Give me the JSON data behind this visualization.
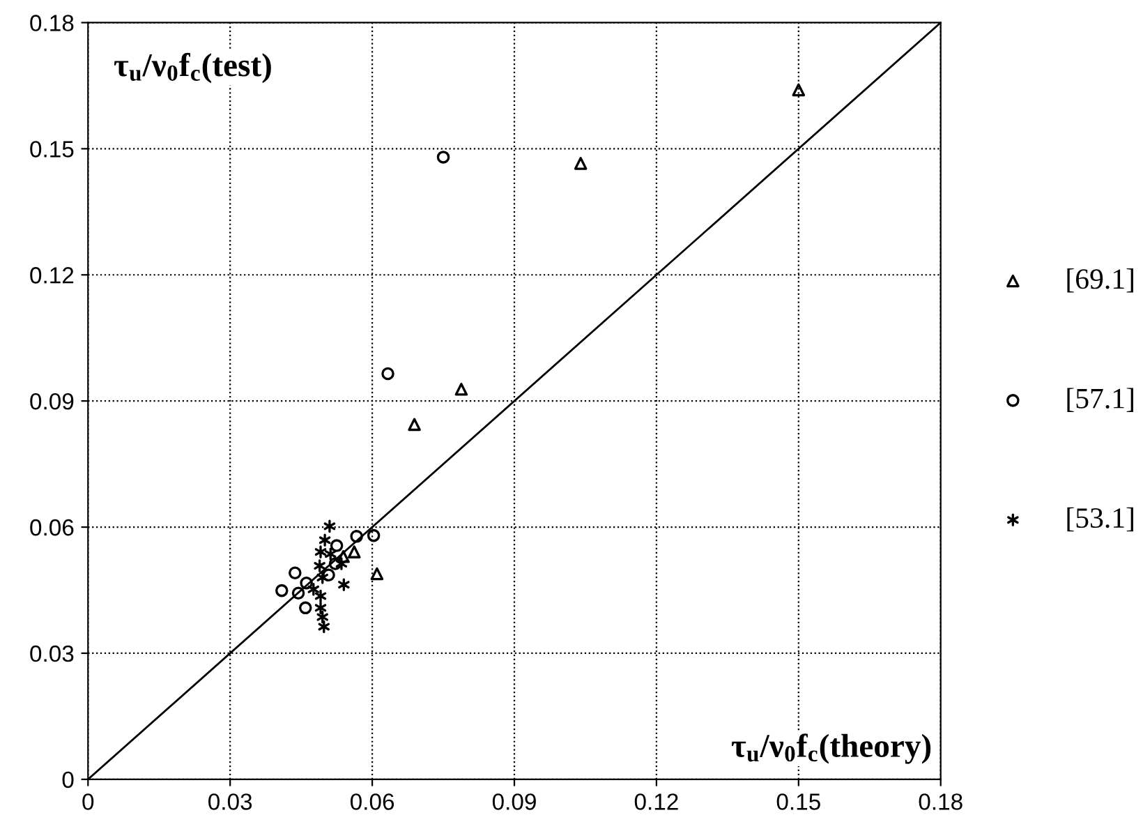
{
  "chart_data": {
    "type": "scatter",
    "xlabel": "τ$_{u}$/ν$_{0}$f$_{c}$(theory)",
    "ylabel": "τ$_{u}$/ν$_{0}$f$_{c}$(test)",
    "xlim": [
      0,
      0.18
    ],
    "ylim": [
      0,
      0.18
    ],
    "xticks": [
      0,
      0.03,
      0.06,
      0.09,
      0.12,
      0.15,
      0.18
    ],
    "yticks": [
      0,
      0.03,
      0.06,
      0.09,
      0.12,
      0.15,
      0.18
    ],
    "grid": true,
    "legend": "right",
    "series": [
      {
        "name": "[69.1]",
        "color": "#000000",
        "marker": "triangle",
        "x": [
          0.15,
          0.104,
          0.0788,
          0.0689,
          0.061,
          0.0562,
          0.0539
        ],
        "values": [
          0.164,
          0.1465,
          0.0928,
          0.0844,
          0.0489,
          0.0541,
          0.053
        ]
      },
      {
        "name": "[57.1]",
        "color": "#000000",
        "marker": "circle",
        "x": [
          0.075,
          0.0633,
          0.0603,
          0.0567,
          0.0525,
          0.0437,
          0.0409,
          0.0444,
          0.0459,
          0.0461,
          0.0508,
          0.0522
        ],
        "values": [
          0.148,
          0.0965,
          0.058,
          0.0578,
          0.0556,
          0.0491,
          0.0449,
          0.0443,
          0.0408,
          0.0467,
          0.0486,
          0.0513
        ]
      },
      {
        "name": "[53.1]",
        "color": "#000000",
        "marker": "cross",
        "x": [
          0.051,
          0.05,
          0.0491,
          0.0512,
          0.0489,
          0.0535,
          0.054,
          0.0495,
          0.0491,
          0.0491,
          0.0495,
          0.0498,
          0.0476
        ],
        "values": [
          0.0602,
          0.0569,
          0.0541,
          0.0536,
          0.0508,
          0.0513,
          0.0463,
          0.048,
          0.0436,
          0.0408,
          0.0386,
          0.0363,
          0.0452
        ]
      },
      {
        "type": "line",
        "color": "#000000",
        "marker": "none",
        "line_style": "solid",
        "x": [
          0,
          0.18
        ],
        "values": [
          0,
          0.18
        ]
      }
    ]
  }
}
